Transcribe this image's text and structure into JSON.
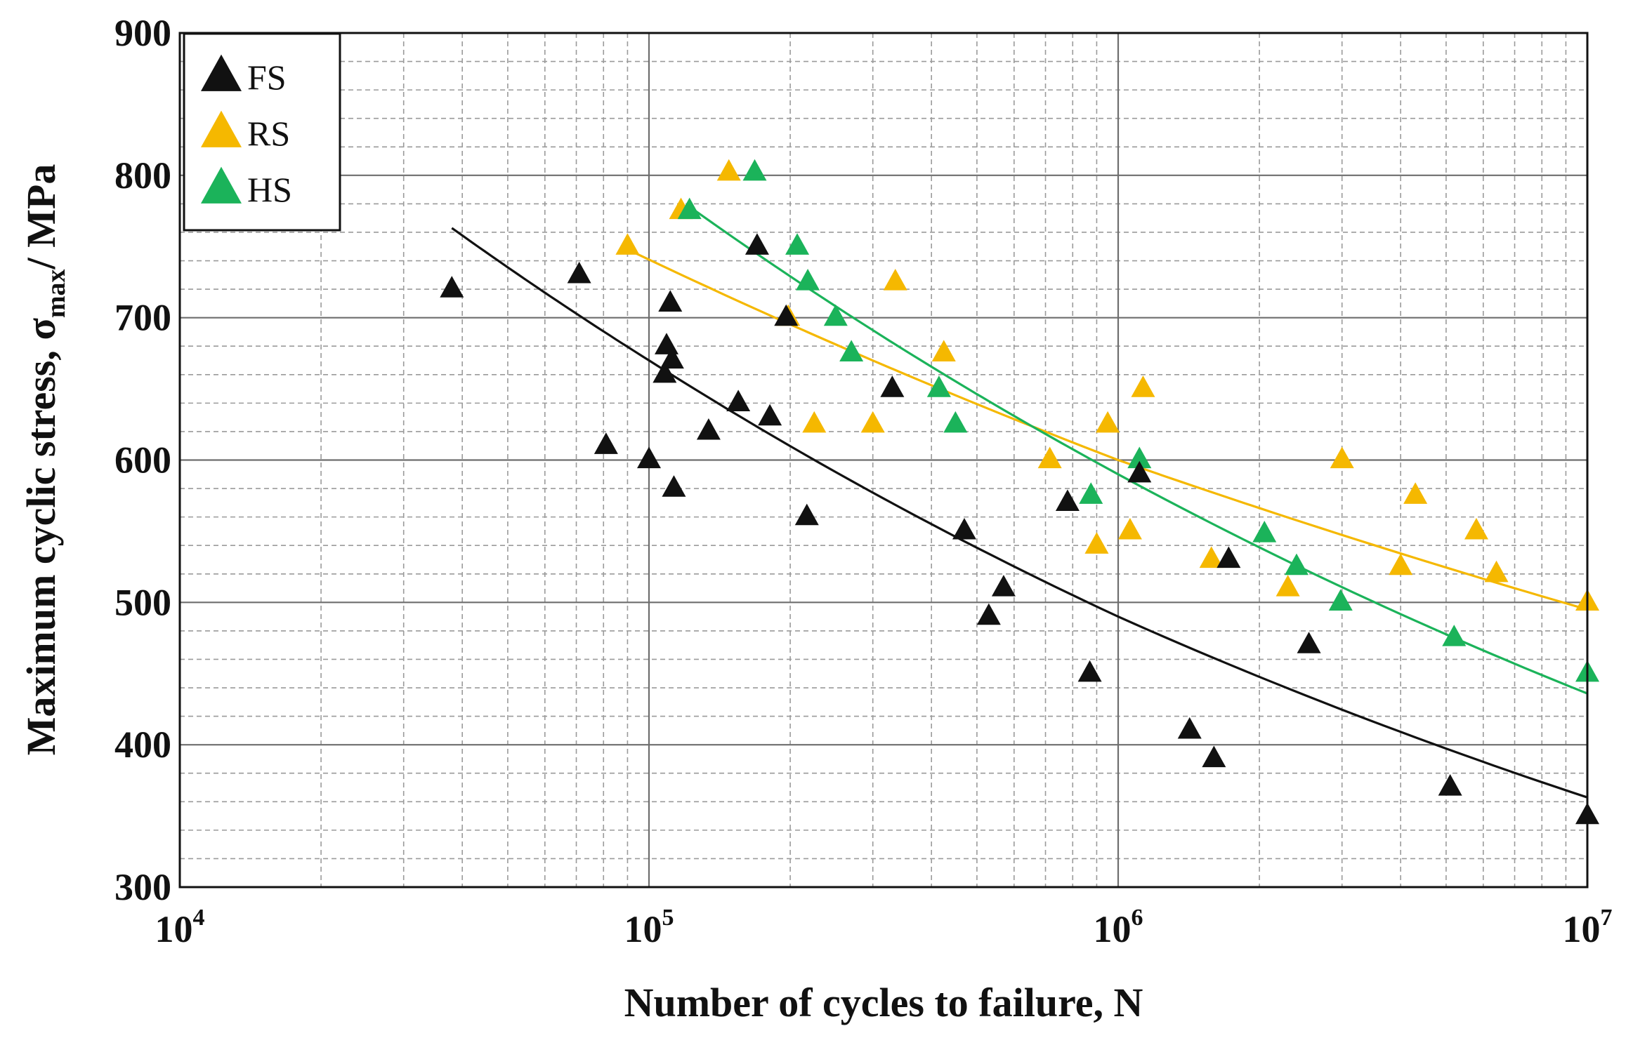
{
  "chart_data": {
    "type": "scatter",
    "title": "",
    "xlabel": "Number of cycles to failure, N",
    "ylabel": {
      "prefix": "Maximum cyclic stress, σ",
      "subscript": "max",
      "suffix": "/ MPa"
    },
    "xscale": "log",
    "xlim": [
      10000,
      10000000
    ],
    "ylim": [
      300,
      900
    ],
    "x_ticks": [
      {
        "base": "10",
        "exp": "4",
        "value": 10000
      },
      {
        "base": "10",
        "exp": "5",
        "value": 100000
      },
      {
        "base": "10",
        "exp": "6",
        "value": 1000000
      },
      {
        "base": "10",
        "exp": "7",
        "value": 10000000
      }
    ],
    "y_ticks": [
      "300",
      "400",
      "500",
      "600",
      "700",
      "800",
      "900"
    ],
    "grid": true,
    "legend": {
      "position": "top-left",
      "entries": [
        "FS",
        "RS",
        "HS"
      ]
    },
    "series": [
      {
        "name": "FS",
        "color": "#111111",
        "marker": "triangle",
        "points": [
          [
            38000,
            720
          ],
          [
            71000,
            730
          ],
          [
            81000,
            610
          ],
          [
            100000,
            600
          ],
          [
            108000,
            660
          ],
          [
            109000,
            680
          ],
          [
            111000,
            710
          ],
          [
            112000,
            670
          ],
          [
            113000,
            580
          ],
          [
            134000,
            620
          ],
          [
            155000,
            640
          ],
          [
            170000,
            750
          ],
          [
            181000,
            630
          ],
          [
            196000,
            700
          ],
          [
            217000,
            560
          ],
          [
            330000,
            650
          ],
          [
            470000,
            550
          ],
          [
            530000,
            490
          ],
          [
            570000,
            510
          ],
          [
            780000,
            570
          ],
          [
            870000,
            450
          ],
          [
            1110000,
            590
          ],
          [
            1420000,
            410
          ],
          [
            1600000,
            390
          ],
          [
            1720000,
            530
          ],
          [
            2550000,
            470
          ],
          [
            5100000,
            370
          ],
          [
            10000000,
            350
          ]
        ],
        "fit": [
          [
            38000,
            763
          ],
          [
            100000,
            670
          ],
          [
            1000000,
            490
          ],
          [
            10000000,
            363
          ]
        ]
      },
      {
        "name": "RS",
        "color": "#f5b800",
        "marker": "triangle",
        "points": [
          [
            90000,
            750
          ],
          [
            117000,
            775
          ],
          [
            148000,
            802
          ],
          [
            198000,
            700
          ],
          [
            225000,
            625
          ],
          [
            300000,
            625
          ],
          [
            335000,
            725
          ],
          [
            425000,
            675
          ],
          [
            715000,
            600
          ],
          [
            900000,
            540
          ],
          [
            950000,
            625
          ],
          [
            1060000,
            550
          ],
          [
            1130000,
            650
          ],
          [
            1580000,
            530
          ],
          [
            2300000,
            510
          ],
          [
            3000000,
            600
          ],
          [
            4000000,
            525
          ],
          [
            4300000,
            575
          ],
          [
            5800000,
            550
          ],
          [
            6400000,
            520
          ],
          [
            10000000,
            500
          ]
        ],
        "fit": [
          [
            90000,
            748
          ],
          [
            1000000,
            600
          ],
          [
            10000000,
            495
          ]
        ]
      },
      {
        "name": "HS",
        "color": "#1bb35a",
        "marker": "triangle",
        "points": [
          [
            122000,
            775
          ],
          [
            168000,
            802
          ],
          [
            207000,
            750
          ],
          [
            218000,
            725
          ],
          [
            250000,
            700
          ],
          [
            270000,
            675
          ],
          [
            415000,
            650
          ],
          [
            450000,
            625
          ],
          [
            875000,
            575
          ],
          [
            1110000,
            600
          ],
          [
            2050000,
            548
          ],
          [
            2400000,
            525
          ],
          [
            2980000,
            500
          ],
          [
            5200000,
            475
          ],
          [
            10000000,
            450
          ]
        ],
        "fit": [
          [
            122000,
            778
          ],
          [
            1000000,
            590
          ],
          [
            10000000,
            436
          ]
        ]
      }
    ]
  }
}
